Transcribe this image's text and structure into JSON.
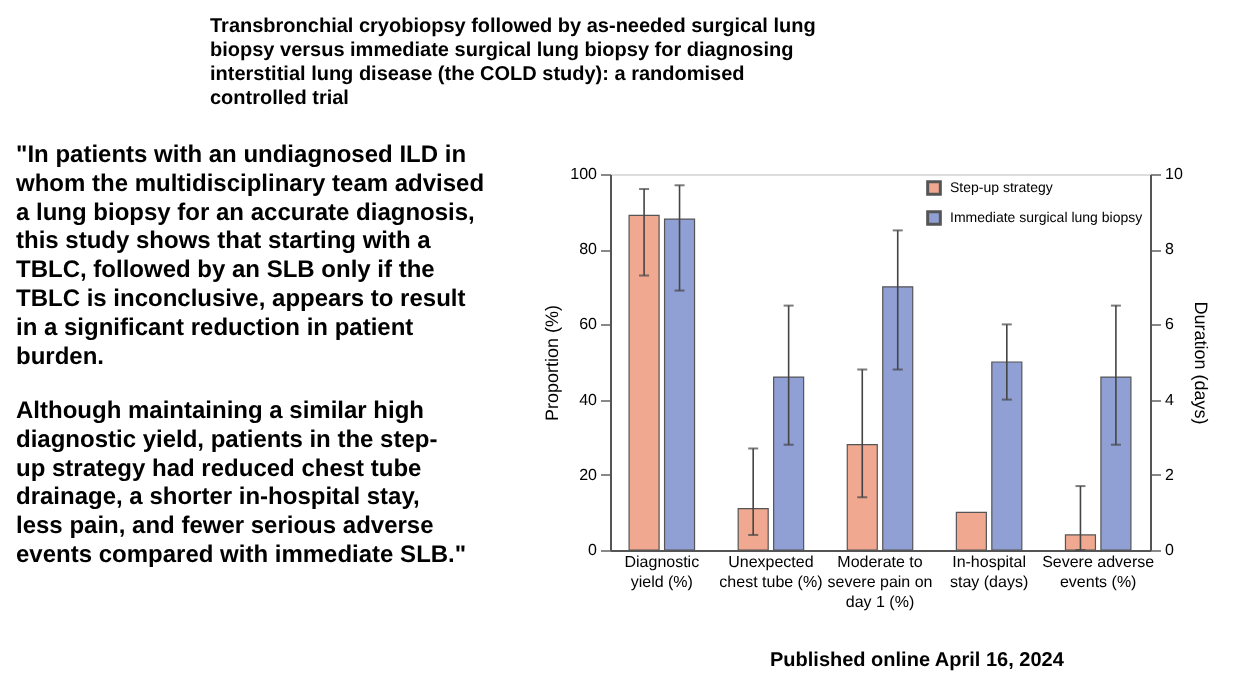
{
  "chart_data": {
    "type": "bar",
    "title": "Transbronchial cryobiopsy followed by as-needed surgical lung biopsy versus immediate surgical lung biopsy for diagnosing interstitial lung disease (the COLD study): a randomised controlled trial",
    "categories": [
      "Diagnostic yield (%)",
      "Unexpected chest tube (%)",
      "Moderate to severe pain on day 1 (%)",
      "In-hospital stay (days)",
      "Severe adverse events (%)"
    ],
    "series": [
      {
        "name": "Step-up strategy",
        "color": "#f0a890",
        "values": [
          89,
          11,
          28,
          10,
          4
        ],
        "errors": [
          [
            73,
            96
          ],
          [
            4,
            27
          ],
          [
            14,
            48
          ],
          null,
          [
            0,
            17
          ]
        ]
      },
      {
        "name": "Immediate surgical lung biopsy",
        "color": "#909fd4",
        "values": [
          88,
          46,
          70,
          50,
          46
        ],
        "errors": [
          [
            69,
            97
          ],
          [
            28,
            65
          ],
          [
            48,
            85
          ],
          [
            40,
            60
          ],
          [
            28,
            65
          ]
        ]
      }
    ],
    "ylabel": "Proportion (%)",
    "ylim": [
      0,
      100
    ],
    "yticks": [
      0,
      20,
      40,
      60,
      80,
      100
    ],
    "y2label": "Duration (days)",
    "y2lim": [
      0,
      10
    ],
    "y2ticks": [
      0,
      2,
      4,
      6,
      8,
      10
    ],
    "legend": "top right",
    "grid": false,
    "annotations": [
      "\"In patients with an undiagnosed ILD in whom the multidisciplinary team advised a lung biopsy for an accurate diagnosis, this study shows that starting with a TBLC, followed by an SLB only if the TBLC is inconclusive, appears to result in a significant reduction in patient burden.",
      "Although maintaining a similar high diagnostic yield, patients in the step-up strategy had reduced chest tube drainage, a shorter in-hospital stay, less pain, and fewer serious adverse events compared with immediate SLB.\"",
      "Published online April 16, 2024"
    ]
  }
}
